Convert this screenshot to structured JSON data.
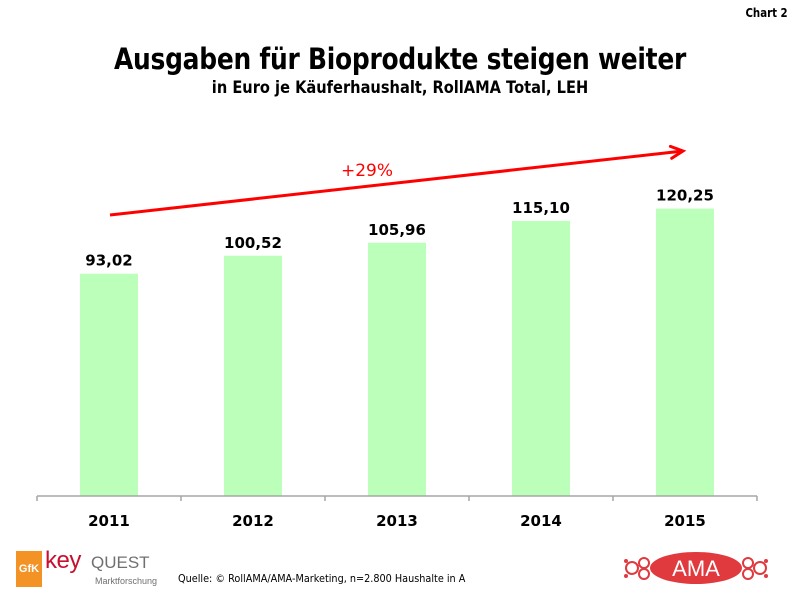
{
  "chart_no": "Chart 2",
  "footer": {
    "source": "Quelle: © RollAMA/AMA-Marketing, n=2.800 Haushalte in A",
    "logo_left": {
      "box": "GfK",
      "key": "key",
      "quest": "QUEST",
      "sub": "Marktforschung"
    },
    "logo_right": {
      "text": "AMA"
    }
  },
  "colors": {
    "bar": "#bbffbb",
    "arrow": "#ff0000",
    "axis": "#a6a6a6"
  },
  "chart_data": {
    "type": "bar",
    "title": "Ausgaben für Bioprodukte steigen weiter",
    "subtitle": "in Euro je Käuferhaushalt, RollAMA Total, LEH",
    "xlabel": "",
    "ylabel": "",
    "categories": [
      "2011",
      "2012",
      "2013",
      "2014",
      "2015"
    ],
    "values": [
      93.02,
      100.52,
      105.96,
      115.1,
      120.25
    ],
    "value_labels": [
      "93,02",
      "100,52",
      "105,96",
      "115,10",
      "120,25"
    ],
    "ylim": [
      0,
      130
    ],
    "grid": false,
    "legend": "none",
    "annotations": [
      {
        "type": "arrow",
        "text": "+29%",
        "from_category": "2011",
        "to_category": "2015",
        "direction": "up-right"
      }
    ]
  }
}
